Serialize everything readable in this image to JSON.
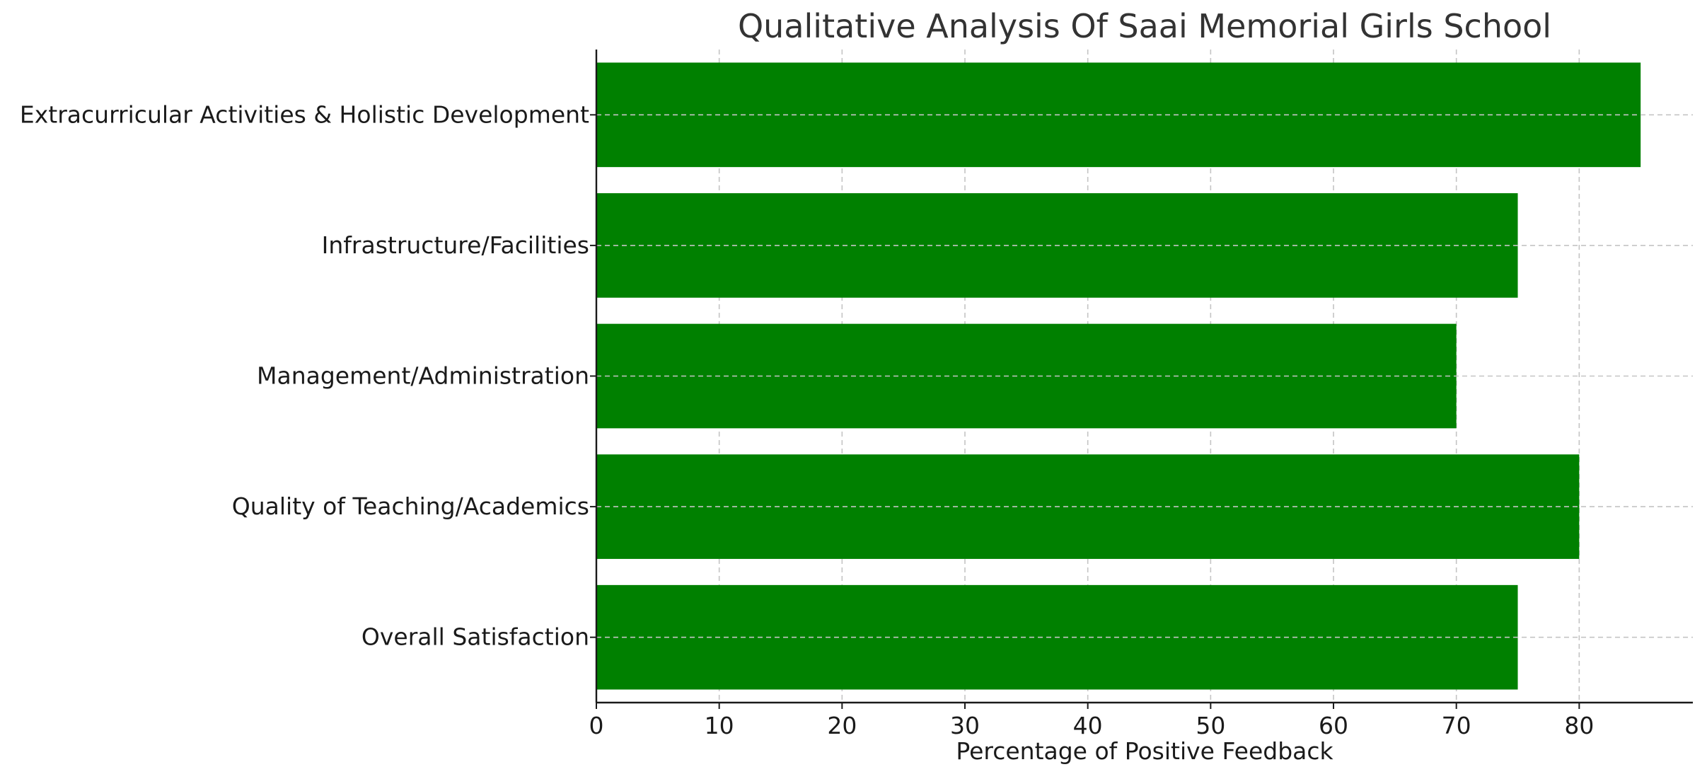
{
  "chart_data": {
    "type": "bar",
    "orientation": "horizontal",
    "title": "Qualitative Analysis Of Saai Memorial Girls School",
    "xlabel": "Percentage of Positive Feedback",
    "ylabel": "",
    "categories": [
      "Extracurricular Activities & Holistic Development",
      "Infrastructure/Facilities",
      "Management/Administration",
      "Quality of Teaching/Academics",
      "Overall Satisfaction"
    ],
    "values": [
      85,
      75,
      70,
      80,
      75
    ],
    "xlim": [
      0,
      89.25
    ],
    "xticks": [
      "0",
      "10",
      "20",
      "30",
      "40",
      "50",
      "60",
      "70",
      "80"
    ],
    "grid": true,
    "legend": "none",
    "bar_color": "#008000"
  }
}
